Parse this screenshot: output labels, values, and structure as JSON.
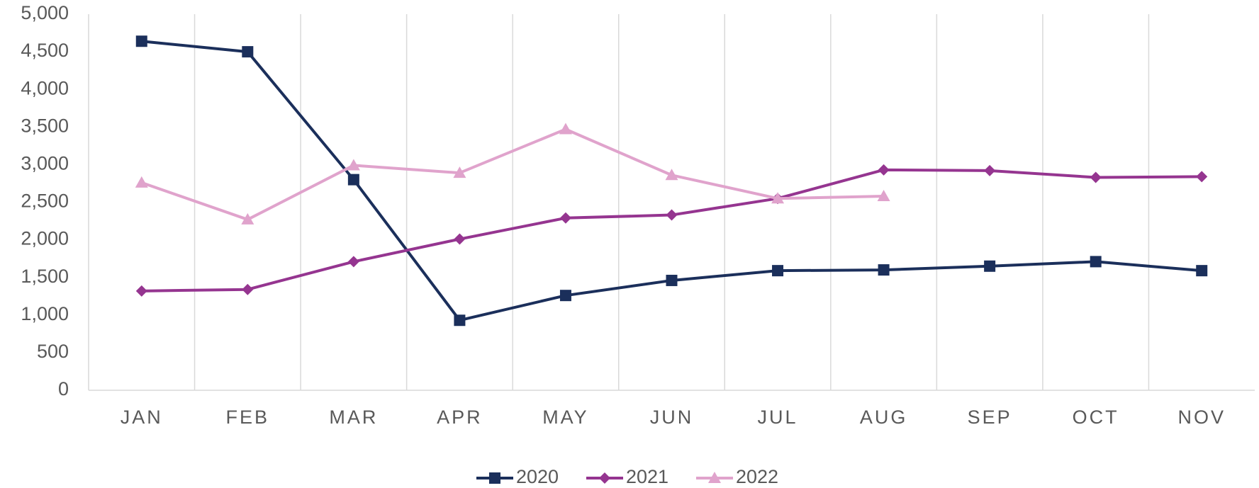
{
  "chart_data": {
    "type": "line",
    "categories": [
      "JAN",
      "FEB",
      "MAR",
      "APR",
      "MAY",
      "JUN",
      "JUL",
      "AUG",
      "SEP",
      "OCT",
      "NOV"
    ],
    "series": [
      {
        "name": "2020",
        "color": "#1b2f5b",
        "marker": "square",
        "values": [
          4640,
          4500,
          2800,
          930,
          1260,
          1460,
          1590,
          1600,
          1650,
          1710,
          1590
        ]
      },
      {
        "name": "2021",
        "color": "#953590",
        "marker": "diamond",
        "values": [
          1320,
          1340,
          1710,
          2010,
          2290,
          2330,
          2550,
          2930,
          2920,
          2830,
          2840
        ]
      },
      {
        "name": "2022",
        "color": "#e0a3cc",
        "marker": "triangle",
        "values": [
          2760,
          2270,
          2990,
          2890,
          3470,
          2860,
          2550,
          2580,
          null,
          null,
          null
        ]
      }
    ],
    "ylim": [
      0,
      5000
    ],
    "yticks": [
      0,
      500,
      {
        "value": 1000,
        "label": "1,000"
      },
      {
        "value": 1500,
        "label": "1,500"
      },
      {
        "value": 2000,
        "label": "2,000"
      },
      {
        "value": 2500,
        "label": "2,500"
      },
      {
        "value": 3000,
        "label": "3,000"
      },
      {
        "value": 3500,
        "label": "3,500"
      },
      {
        "value": 4000,
        "label": "4,000"
      },
      {
        "value": 4500,
        "label": "4,500"
      },
      {
        "value": 5000,
        "label": "5,000"
      }
    ],
    "legend": "bottom"
  }
}
